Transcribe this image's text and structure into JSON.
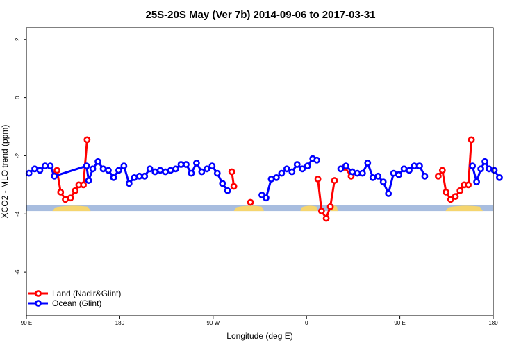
{
  "chart_data": {
    "type": "line",
    "title": "25S-20S May (Ver 7b)   2014-09-06 to 2017-03-31",
    "xlabel": "Longitude (deg E)",
    "ylabel": "XCO2 - MLO trend (ppm)",
    "xlim": [
      90,
      540
    ],
    "ylim": [
      -7.5,
      2.4
    ],
    "x_ticks": [
      {
        "value": 90,
        "label": "90 E"
      },
      {
        "value": 180,
        "label": "180"
      },
      {
        "value": 270,
        "label": "90 W"
      },
      {
        "value": 360,
        "label": "0"
      },
      {
        "value": 450,
        "label": "90 E"
      },
      {
        "value": 540,
        "label": "180"
      }
    ],
    "y_ticks": [
      {
        "value": 2,
        "label": "2"
      },
      {
        "value": 0,
        "label": "0"
      },
      {
        "value": -2,
        "label": "-2"
      },
      {
        "value": -4,
        "label": "-4"
      },
      {
        "value": -6,
        "label": "-6"
      }
    ],
    "legend": {
      "position": "bottom-left",
      "entries": [
        {
          "label": "Land (Nadir&Glint)",
          "color": "#ff0000"
        },
        {
          "label": "Ocean (Glint)",
          "color": "#0000ff"
        }
      ]
    },
    "surface_band": {
      "y_range": [
        -3.9,
        -3.7
      ],
      "ocean_color": "#a8bddf",
      "land_color": "#f5d56e",
      "land_segments": [
        [
          115,
          152
        ],
        [
          290,
          319
        ],
        [
          354,
          371
        ],
        [
          383,
          390
        ],
        [
          494,
          530
        ]
      ]
    },
    "series": [
      {
        "name": "Land (Nadir&Glint)",
        "color": "#ff0000",
        "segments": [
          [
            [
              117.5,
              -2.65
            ],
            [
              119.5,
              -2.5
            ],
            [
              123,
              -3.25
            ],
            [
              127.5,
              -3.5
            ],
            [
              132.5,
              -3.45
            ],
            [
              137,
              -3.2
            ],
            [
              140.5,
              -3.0
            ],
            [
              145,
              -3.0
            ],
            [
              148.5,
              -1.45
            ]
          ],
          [
            [
              288,
              -2.55
            ],
            [
              290,
              -3.05
            ]
          ],
          [
            [
              306,
              -3.6
            ]
          ],
          [
            [
              371,
              -2.8
            ],
            [
              374.5,
              -3.9
            ],
            [
              379,
              -4.15
            ],
            [
              383,
              -3.75
            ],
            [
              387,
              -2.85
            ]
          ],
          [
            [
              397,
              -2.4
            ],
            [
              403,
              -2.7
            ]
          ],
          [
            [
              487,
              -2.7
            ],
            [
              491,
              -2.5
            ],
            [
              494.5,
              -3.25
            ],
            [
              499,
              -3.5
            ],
            [
              503.5,
              -3.4
            ],
            [
              508,
              -3.2
            ],
            [
              512,
              -3.0
            ],
            [
              516,
              -3.0
            ],
            [
              519,
              -1.45
            ]
          ]
        ]
      },
      {
        "name": "Ocean (Glint)",
        "color": "#0000ff",
        "segments": [
          [
            [
              92.5,
              -2.6
            ],
            [
              98,
              -2.45
            ],
            [
              103,
              -2.5
            ],
            [
              108,
              -2.35
            ],
            [
              113,
              -2.35
            ],
            [
              117,
              -2.7
            ],
            [
              148,
              -2.35
            ],
            [
              150,
              -2.85
            ],
            [
              154,
              -2.45
            ],
            [
              159,
              -2.2
            ],
            [
              164,
              -2.45
            ],
            [
              169,
              -2.5
            ],
            [
              174,
              -2.75
            ],
            [
              179,
              -2.5
            ],
            [
              184,
              -2.35
            ],
            [
              189,
              -2.95
            ],
            [
              194,
              -2.75
            ],
            [
              199,
              -2.7
            ],
            [
              204,
              -2.7
            ],
            [
              209,
              -2.45
            ],
            [
              214,
              -2.55
            ],
            [
              219,
              -2.5
            ],
            [
              224,
              -2.55
            ],
            [
              229,
              -2.5
            ],
            [
              234,
              -2.45
            ],
            [
              239,
              -2.3
            ],
            [
              244,
              -2.3
            ],
            [
              249,
              -2.6
            ],
            [
              254,
              -2.25
            ],
            [
              259,
              -2.55
            ],
            [
              264,
              -2.45
            ],
            [
              269,
              -2.35
            ],
            [
              274,
              -2.6
            ],
            [
              279,
              -2.95
            ],
            [
              284,
              -3.2
            ]
          ],
          [
            [
              317,
              -3.35
            ],
            [
              321,
              -3.45
            ],
            [
              326,
              -2.8
            ],
            [
              331,
              -2.75
            ],
            [
              336,
              -2.6
            ],
            [
              341,
              -2.45
            ],
            [
              346,
              -2.55
            ],
            [
              351,
              -2.3
            ],
            [
              356,
              -2.45
            ],
            [
              361,
              -2.35
            ],
            [
              366,
              -2.1
            ],
            [
              370,
              -2.15
            ]
          ],
          [
            [
              393,
              -2.45
            ],
            [
              398,
              -2.35
            ],
            [
              404,
              -2.55
            ],
            [
              409,
              -2.6
            ],
            [
              414,
              -2.6
            ],
            [
              419,
              -2.25
            ],
            [
              424,
              -2.75
            ],
            [
              429,
              -2.7
            ],
            [
              434,
              -2.9
            ],
            [
              439,
              -3.3
            ],
            [
              444,
              -2.6
            ],
            [
              449,
              -2.65
            ],
            [
              454,
              -2.45
            ],
            [
              459,
              -2.5
            ],
            [
              464,
              -2.35
            ],
            [
              469,
              -2.35
            ],
            [
              474,
              -2.7
            ]
          ],
          [
            [
              520,
              -2.35
            ],
            [
              524,
              -2.9
            ],
            [
              528,
              -2.45
            ],
            [
              532,
              -2.2
            ],
            [
              536,
              -2.45
            ],
            [
              541,
              -2.5
            ],
            [
              546,
              -2.75
            ]
          ]
        ]
      }
    ]
  }
}
